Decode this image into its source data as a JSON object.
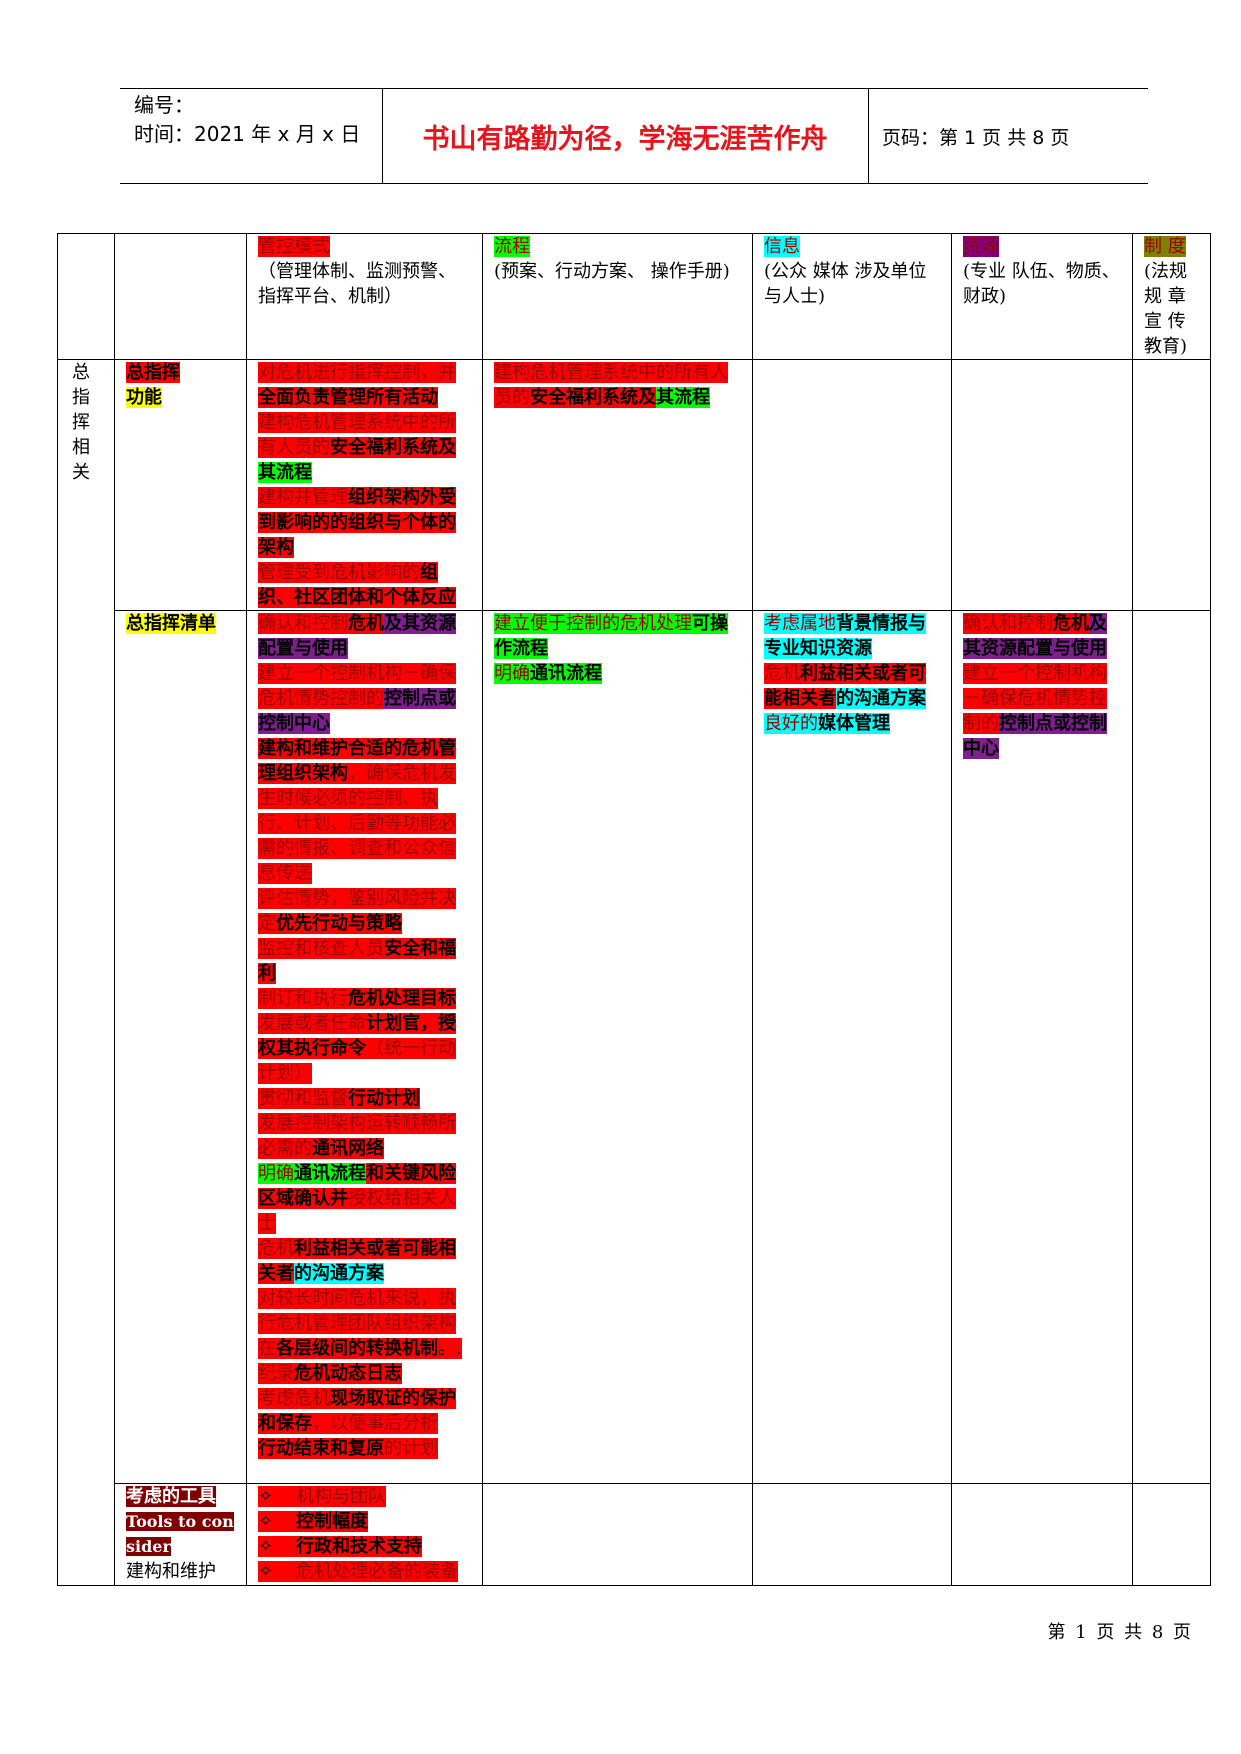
{
  "header": {
    "number_label": "编号：",
    "time_label": "时间：2021 年 x 月 x 日",
    "motto": "书山有路勤为径，学海无涯苦作舟",
    "page_label": "页码：第 1 页  共 8 页"
  },
  "columns": {
    "c3": {
      "title": "管控模式",
      "sub": "（管理体制、监测预警、指挥平台、机制）"
    },
    "c4": {
      "title": "流程",
      "sub": "(预案、行动方案、 操作手册)"
    },
    "c5": {
      "title": "信息",
      "sub": "(公众 媒体 涉及单位与人士)"
    },
    "c6": {
      "title": "资源",
      "sub": "(专业 队伍、物质、财政)"
    },
    "c7": {
      "title": "制 度",
      "sub": "(法规 规 章 宣 传 教育)"
    }
  },
  "rows": {
    "r1": {
      "group": "总指挥相关",
      "label_a": "总指挥",
      "label_b": "功能",
      "c3": [
        {
          "a": "对危机进行指挥控制，并",
          "b": "全面负责管理所有活动"
        },
        {
          "a": "建构危机管理系统中的所有人员的",
          "b": "安全福利系统及",
          "c": "其流程"
        },
        {
          "a": "建构并管理",
          "b": "组织架构外受到影响的的组织与个体的架构"
        },
        {
          "a": "管理受到危机影响的",
          "b": "组织、社区团体和个体反应"
        }
      ],
      "c4": {
        "a": "建构危机管理系统中的所有人员的",
        "b": "安全福利系统及",
        "c": "其流程"
      }
    },
    "r2": {
      "label": "总指挥清单",
      "c3": [
        {
          "a": "确认和控制",
          "b": "危机",
          "c": "及其资源配置与使用"
        },
        {
          "a": "建立一个控制机构－确保危机情势控制的",
          "b": "控制点或控制中心"
        },
        {
          "a": "建构和维护合适的危机管理组织架构",
          "b": "，确保危机发生时候必须的控制、执行、计划、后勤等功能必需的情报、调查和公众信息传递"
        },
        {
          "a": "评估情势，鉴别风险并决定",
          "b": "优先行动与策略"
        },
        {
          "a": "监控和核查人员",
          "b": "安全和福利"
        },
        {
          "a": "制订和执行",
          "b": "危机处理目标"
        },
        {
          "a": "发展或者任命",
          "b": "计划官，授权其执行命令",
          "c": "（统一行动计划）"
        },
        {
          "a": "贯彻和监督",
          "b": "行动计划"
        },
        {
          "a": "发展控制架构运转顺畅所必需的",
          "b": "通讯网络"
        },
        {
          "a": "明确",
          "b": "通讯流程",
          "c": "和关键风险区域确认并",
          "d": "授权给相关人士"
        },
        {
          "a": "危机",
          "b": "利益相关或者可能相关者",
          "c": "的沟通方案"
        },
        {
          "a": "对较长时间危机来说，执行危机管理团队组织架构在",
          "b": "各层级间的转换机制",
          "c": "。."
        },
        {
          "a": "纪录",
          "b": "危机动态日志"
        },
        {
          "a": "考虑危机",
          "b": "现场取证的保护和保存",
          "c": "，以便事后分析"
        },
        {
          "a": "行动结束和复原",
          "b": "的计划"
        }
      ],
      "c4": [
        {
          "a": "建立便于控制的危机处理",
          "b": "可操作流程"
        },
        {
          "a": "明确",
          "b": "通讯流程"
        }
      ],
      "c5": [
        {
          "a": "考虑属地",
          "b": "背景情报与专业知识资源"
        },
        {
          "a": "危机",
          "b": "利益相关或者可能相关者",
          "c": "的沟通方案"
        },
        {
          "a": "良好的",
          "b": "媒体管理"
        }
      ],
      "c6": [
        {
          "a": "确认和控制",
          "b": "危机",
          "c": "及其资源配置与使用"
        },
        {
          "a": "建立一个控制机构－确保危机情势控制的",
          "b": "控制点或控制中心"
        }
      ]
    },
    "r3": {
      "label_a": "考虑的工具",
      "label_b": "Tools to consider",
      "label_c": "建构和维护",
      "c3": [
        "机构与团队",
        "控制幅度",
        "行政和技术支持",
        "危机处理必备的装备"
      ],
      "bullet": "✧"
    }
  },
  "footer": "第 1 页 共 8 页"
}
